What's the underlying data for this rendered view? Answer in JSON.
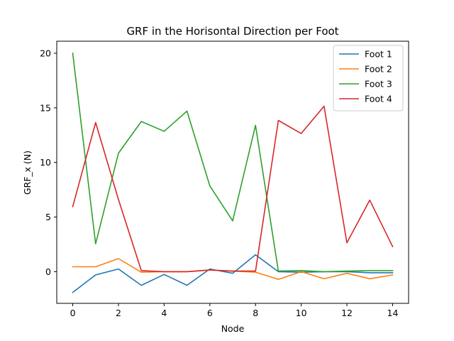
{
  "chart_data": {
    "type": "line",
    "title": "GRF in the Horisontal Direction per Foot",
    "xlabel": "Node",
    "ylabel": "GRF_x (N)",
    "xlim": [
      -0.7,
      14.7
    ],
    "ylim": [
      -2.9,
      21.1
    ],
    "x_ticks": [
      0,
      2,
      4,
      6,
      8,
      10,
      12,
      14
    ],
    "y_ticks": [
      0,
      5,
      10,
      15,
      20
    ],
    "grid": false,
    "legend_position": "upper right",
    "x": [
      0,
      1,
      2,
      3,
      4,
      5,
      6,
      7,
      8,
      9,
      10,
      11,
      12,
      13,
      14
    ],
    "series": [
      {
        "name": "Foot 1",
        "color": "#1f77b4",
        "values": [
          -1.9,
          -0.3,
          0.25,
          -1.25,
          -0.25,
          -1.25,
          0.25,
          -0.15,
          1.55,
          0.0,
          -0.05,
          0.0,
          0.0,
          -0.1,
          -0.1
        ]
      },
      {
        "name": "Foot 2",
        "color": "#ff7f0e",
        "values": [
          0.45,
          0.45,
          1.2,
          -0.05,
          0.0,
          0.0,
          0.15,
          0.05,
          -0.05,
          -0.7,
          0.0,
          -0.65,
          -0.15,
          -0.65,
          -0.3
        ]
      },
      {
        "name": "Foot 3",
        "color": "#2ca02c",
        "values": [
          20.0,
          2.55,
          10.85,
          13.75,
          12.85,
          14.7,
          7.85,
          4.65,
          13.4,
          0.05,
          0.1,
          0.0,
          0.05,
          0.1,
          0.1
        ]
      },
      {
        "name": "Foot 4",
        "color": "#d62728",
        "values": [
          5.95,
          13.65,
          6.6,
          0.1,
          0.0,
          0.0,
          0.15,
          0.05,
          0.05,
          13.85,
          12.65,
          15.15,
          2.65,
          6.55,
          2.3
        ]
      }
    ]
  }
}
